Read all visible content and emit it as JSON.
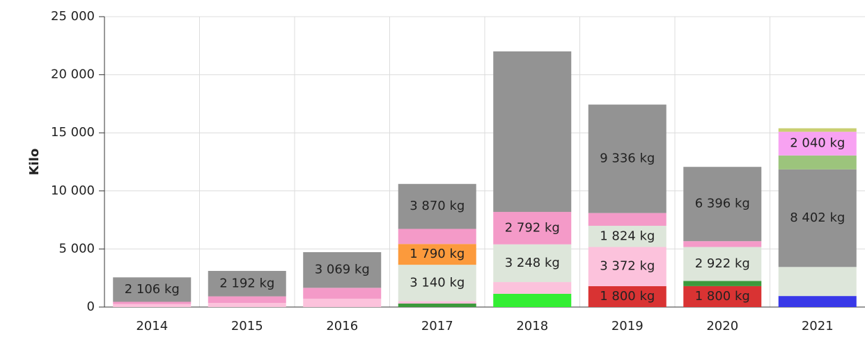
{
  "chart_data": {
    "type": "stacked_bar",
    "y_label": "Kilo",
    "categories": [
      "2014",
      "2015",
      "2016",
      "2017",
      "2018",
      "2019",
      "2020",
      "2021"
    ],
    "ylim": [
      0,
      25000
    ],
    "yticks": [
      0,
      {
        "value": 5000,
        "label": "5 000"
      },
      {
        "value": 10000,
        "label": "10 000"
      },
      {
        "value": 15000,
        "label": "15 000"
      },
      {
        "value": 20000,
        "label": "20 000"
      },
      {
        "value": 25000,
        "label": "25 000"
      }
    ],
    "grid": true,
    "series": [
      {
        "color": "#d93333",
        "values": [
          null,
          null,
          null,
          null,
          null,
          1800,
          1800,
          null
        ],
        "value_labels": [
          null,
          null,
          null,
          null,
          null,
          "1 800 kg",
          "1 800 kg",
          null
        ]
      },
      {
        "color": "#3838e8",
        "values": [
          null,
          null,
          null,
          null,
          null,
          null,
          null,
          950
        ]
      },
      {
        "color": "#33ee33",
        "values": [
          null,
          null,
          null,
          null,
          1140,
          null,
          null,
          null
        ]
      },
      {
        "color": "#3c9a3c",
        "values": [
          null,
          null,
          null,
          300,
          null,
          null,
          450,
          null
        ]
      },
      {
        "color": "#fcc2dc",
        "values": [
          250,
          350,
          720,
          200,
          1010,
          3372,
          null,
          null
        ],
        "value_labels": [
          null,
          null,
          null,
          null,
          null,
          "3 372 kg",
          null,
          null
        ]
      },
      {
        "color": "#dde6da",
        "values": [
          null,
          null,
          null,
          3140,
          3248,
          1824,
          2922,
          2500
        ],
        "value_labels": [
          null,
          null,
          null,
          "3 140 kg",
          "3 248 kg",
          "1 824 kg",
          "2 922 kg",
          null
        ]
      },
      {
        "color": "#fc9a3c",
        "values": [
          null,
          null,
          null,
          1790,
          null,
          null,
          null,
          null
        ],
        "value_labels": [
          null,
          null,
          null,
          "1 790 kg",
          null,
          null,
          null,
          null
        ]
      },
      {
        "color": "#f49ac8",
        "values": [
          200,
          570,
          936,
          1300,
          2792,
          1100,
          500,
          null
        ],
        "value_labels": [
          null,
          null,
          null,
          null,
          "2 792 kg",
          null,
          null,
          null
        ]
      },
      {
        "color": "#939393",
        "values": [
          2106,
          2192,
          3069,
          3870,
          13820,
          9336,
          6396,
          8402
        ],
        "value_labels": [
          "2 106 kg",
          "2 192 kg",
          "3 069 kg",
          "3 870 kg",
          null,
          "9 336 kg",
          "6 396 kg",
          "8 402 kg"
        ]
      },
      {
        "color": "#9cc47c",
        "values": [
          null,
          null,
          null,
          null,
          null,
          null,
          null,
          1200
        ]
      },
      {
        "color": "#f8a2f2",
        "values": [
          null,
          null,
          null,
          null,
          null,
          null,
          null,
          2040
        ],
        "value_labels": [
          null,
          null,
          null,
          null,
          null,
          null,
          null,
          "2 040 kg"
        ]
      },
      {
        "color": "#c9cf72",
        "values": [
          null,
          null,
          null,
          null,
          null,
          null,
          null,
          300
        ]
      }
    ]
  }
}
